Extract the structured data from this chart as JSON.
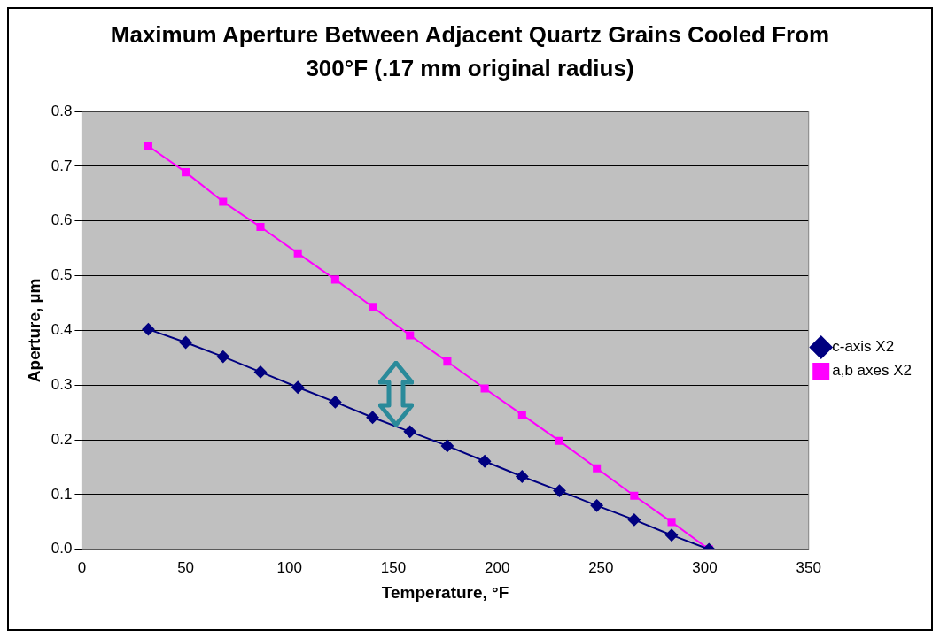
{
  "chart_data": {
    "type": "line",
    "title": "Maximum Aperture Between Adjacent Quartz Grains Cooled From 300°F (.17 mm original radius)",
    "xlabel": "Temperature, °F",
    "ylabel": "Aperture, µm",
    "x": [
      32,
      50,
      68,
      86,
      104,
      122,
      140,
      158,
      176,
      194,
      212,
      230,
      248,
      266,
      284,
      302
    ],
    "series": [
      {
        "name": "c-axis X2",
        "color": "#000080",
        "marker": "diamond",
        "values": [
          0.402,
          0.378,
          0.352,
          0.324,
          0.296,
          0.269,
          0.241,
          0.215,
          0.189,
          0.161,
          0.133,
          0.107,
          0.08,
          0.054,
          0.026,
          0
        ]
      },
      {
        "name": "a,b axes X2",
        "color": "#ff00ff",
        "marker": "square",
        "values": [
          0.737,
          0.689,
          0.635,
          0.589,
          0.541,
          0.493,
          0.443,
          0.391,
          0.343,
          0.294,
          0.246,
          0.198,
          0.148,
          0.098,
          0.05,
          0
        ]
      }
    ],
    "xlim": [
      0,
      350
    ],
    "xticks": [
      0,
      50,
      100,
      150,
      200,
      250,
      300,
      350
    ],
    "ylim": [
      0,
      0.8
    ],
    "yticks": [
      {
        "value": 0,
        "label": "0.0"
      },
      {
        "value": 0.1,
        "label": "0.1"
      },
      {
        "value": 0.2,
        "label": "0.2"
      },
      {
        "value": 0.3,
        "label": "0.3"
      },
      {
        "value": 0.4,
        "label": "0.4"
      },
      {
        "value": 0.5,
        "label": "0.5"
      },
      {
        "value": 0.6,
        "label": "0.6"
      },
      {
        "value": 0.7,
        "label": "0.7"
      },
      {
        "value": 0.8,
        "label": "0.8"
      }
    ],
    "grid": "y",
    "legend": "right"
  }
}
